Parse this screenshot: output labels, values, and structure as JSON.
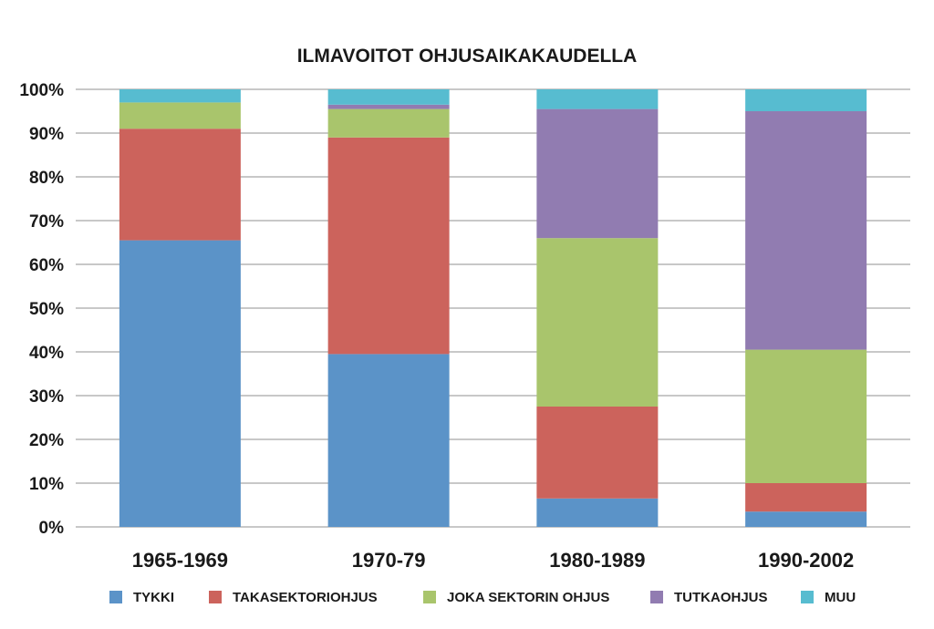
{
  "chart_data": {
    "type": "bar",
    "stacked": true,
    "normalized": true,
    "title": "ILMAVOITOT OHJUSAIKAKAUDELLA",
    "categories": [
      "1965-1969",
      "1970-79",
      "1980-1989",
      "1990-2002"
    ],
    "series": [
      {
        "name": "TYKKI",
        "color": "#5b93c8",
        "values": [
          65.5,
          39.5,
          6.5,
          3.5
        ]
      },
      {
        "name": "TAKASEKTORIOHJUS",
        "color": "#cc635c",
        "values": [
          25.5,
          49.5,
          21.0,
          6.5
        ]
      },
      {
        "name": "JOKA SEKTORIN OHJUS",
        "color": "#a9c56c",
        "values": [
          6.0,
          6.5,
          38.5,
          30.5
        ]
      },
      {
        "name": "TUTKAOHJUS",
        "color": "#917cb1",
        "values": [
          0.0,
          1.0,
          29.5,
          54.5
        ]
      },
      {
        "name": "MUU",
        "color": "#57bcd0",
        "values": [
          3.0,
          3.5,
          4.5,
          5.0
        ]
      }
    ],
    "yticks": [
      "0%",
      "10%",
      "20%",
      "30%",
      "40%",
      "50%",
      "60%",
      "70%",
      "80%",
      "90%",
      "100%"
    ],
    "ylim": [
      0,
      100
    ],
    "xlabel": "",
    "ylabel": "",
    "grid": true,
    "legend_position": "bottom"
  }
}
